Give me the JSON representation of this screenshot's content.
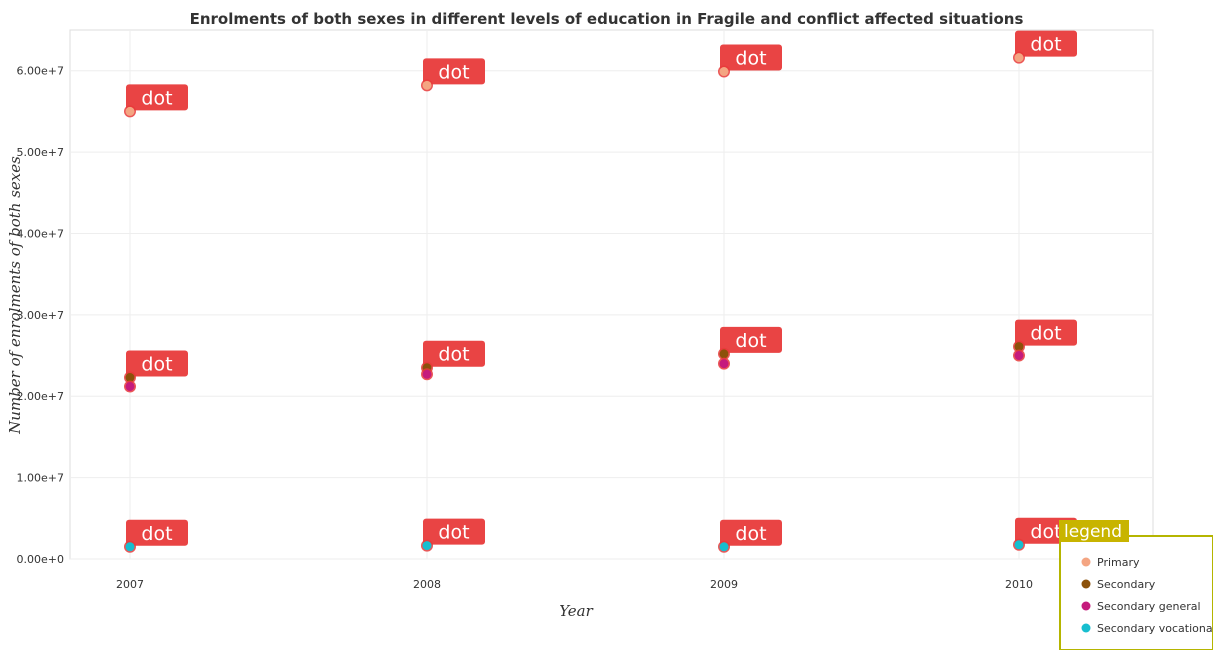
{
  "chart_data": {
    "type": "scatter",
    "title": "Enrolments of both sexes in different levels of education in Fragile and conflict affected situations",
    "xlabel": "Year",
    "ylabel": "Number of enrolments of both sexes",
    "x": [
      "2007",
      "2008",
      "2009",
      "2010"
    ],
    "yticks": [
      "0.00e+0",
      "1.00e+7",
      "2.00e+7",
      "3.00e+7",
      "4.00e+7",
      "5.00e+7",
      "6.00e+7"
    ],
    "ylim": [
      0,
      65000000
    ],
    "grid": true,
    "legend_title": "legend",
    "legend_position": "bottom-right",
    "annotation_text": "dot",
    "series": [
      {
        "name": "Primary",
        "color": "#f4a582",
        "values": [
          55000000,
          58200000,
          59900000,
          61600000
        ]
      },
      {
        "name": "Secondary",
        "color": "#8c510a",
        "values": [
          22300000,
          23500000,
          25200000,
          26100000
        ]
      },
      {
        "name": "Secondary general",
        "color": "#c51b7d",
        "values": [
          21200000,
          22700000,
          24000000,
          25000000
        ]
      },
      {
        "name": "Secondary vocational",
        "color": "#17becf",
        "values": [
          1500000,
          1650000,
          1500000,
          1750000
        ]
      }
    ]
  }
}
